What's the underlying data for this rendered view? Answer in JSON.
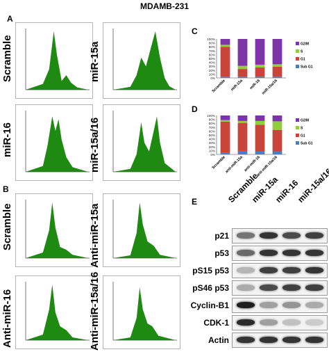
{
  "title": "MDAMB-231",
  "panels": {
    "a": "A",
    "b": "B",
    "c": "C",
    "d": "D",
    "e": "E"
  },
  "flow_a": [
    {
      "label": "Scramble"
    },
    {
      "label": "miR-15a"
    },
    {
      "label": "miR-16"
    },
    {
      "label": "miR-15a/16"
    }
  ],
  "flow_b": [
    {
      "label": "Scramble"
    },
    {
      "label": "Anti-miR-15a"
    },
    {
      "label": "Anti-miR-16"
    },
    {
      "label": "Anti-miR-15a/16"
    }
  ],
  "colors": {
    "histogram": "#1f8a12",
    "g2m": "#7b35a8",
    "s": "#8fcf3c",
    "g1": "#c8453b",
    "subg1": "#4a7fc0"
  },
  "chart_data": [
    {
      "type": "bar",
      "stacked": true,
      "panel": "C",
      "categories": [
        "Scramble",
        "miR-15a",
        "miR-16",
        "miR-15a/16"
      ],
      "ylim": [
        0,
        100
      ],
      "yticks": [
        "0%",
        "10%",
        "20%",
        "30%",
        "40%",
        "50%",
        "60%",
        "70%",
        "80%",
        "90%",
        "100%"
      ],
      "series": [
        {
          "name": "Sub G1",
          "values": [
            3,
            3,
            3,
            3
          ]
        },
        {
          "name": "G1",
          "values": [
            77,
            20,
            24,
            26
          ]
        },
        {
          "name": "S",
          "values": [
            5,
            8,
            7,
            6
          ]
        },
        {
          "name": "G2/M",
          "values": [
            15,
            69,
            66,
            65
          ]
        }
      ],
      "legend": "right"
    },
    {
      "type": "bar",
      "stacked": true,
      "panel": "D",
      "categories": [
        "Scramble",
        "anti-miR-15a",
        "anti-miR-16",
        "anti-miR-15a/16"
      ],
      "ylim": [
        0,
        100
      ],
      "yticks": [
        "0%",
        "10%",
        "20%",
        "30%",
        "40%",
        "50%",
        "60%",
        "70%",
        "80%",
        "90%",
        "100%"
      ],
      "series": [
        {
          "name": "Sub G1",
          "values": [
            4,
            9,
            8,
            8
          ]
        },
        {
          "name": "G1",
          "values": [
            80,
            72,
            68,
            55
          ]
        },
        {
          "name": "S",
          "values": [
            4,
            5,
            10,
            22
          ]
        },
        {
          "name": "G2/M",
          "values": [
            12,
            14,
            14,
            15
          ]
        }
      ],
      "legend": "right"
    }
  ],
  "western": {
    "columns": [
      "Scramble",
      "miR-15a",
      "miR-16",
      "miR-15a/16"
    ],
    "rows": [
      {
        "label": "p21",
        "levels": [
          0.55,
          0.85,
          0.75,
          0.8
        ]
      },
      {
        "label": "p53",
        "levels": [
          0.6,
          0.85,
          0.85,
          0.85
        ]
      },
      {
        "label": "pS15 p53",
        "levels": [
          0.25,
          0.8,
          0.8,
          0.85
        ]
      },
      {
        "label": "pS46 p53",
        "levels": [
          0.3,
          0.75,
          0.8,
          0.8
        ]
      },
      {
        "label": "Cyclin-B1",
        "levels": [
          0.95,
          0.35,
          0.4,
          0.3
        ]
      },
      {
        "label": "CDK-1",
        "levels": [
          0.9,
          0.35,
          0.2,
          0.15
        ]
      },
      {
        "label": "Actin",
        "levels": [
          0.85,
          0.85,
          0.85,
          0.85
        ]
      }
    ]
  }
}
